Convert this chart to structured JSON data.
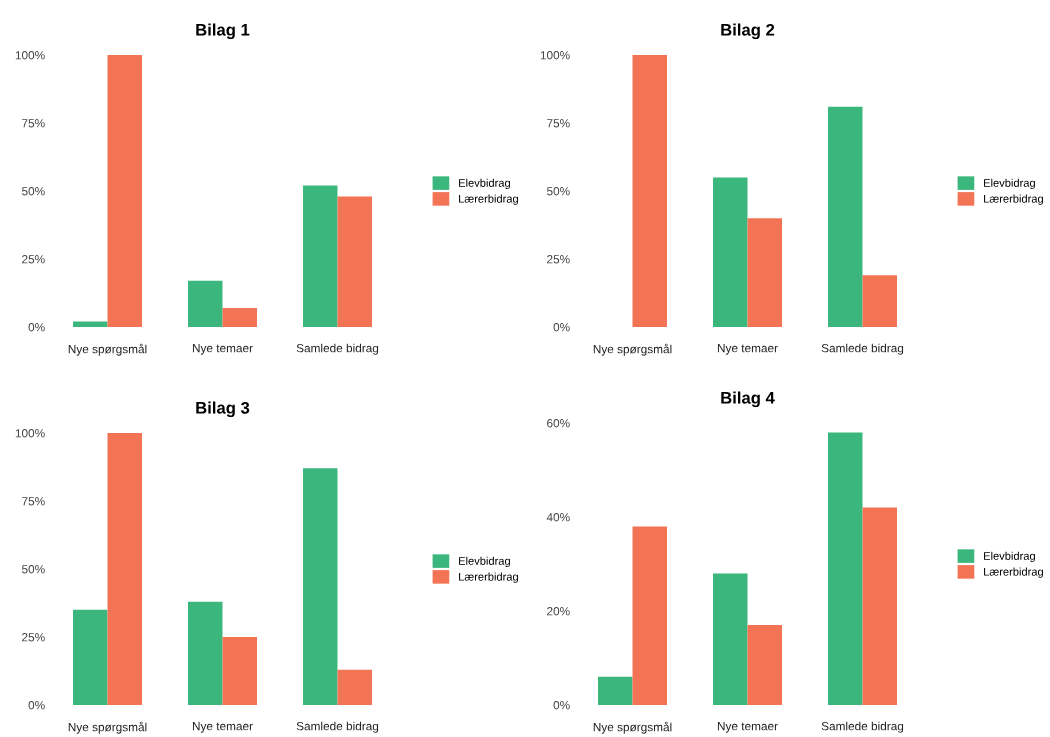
{
  "chart_data": [
    {
      "type": "bar",
      "title": "Bilag 1",
      "categories": [
        "Nye spørgsmål",
        "Nye temaer",
        "Samlede bidrag"
      ],
      "series": [
        {
          "name": "Elevbidrag",
          "color": "#3bb77e",
          "values": [
            2,
            17,
            52
          ]
        },
        {
          "name": "Lærerbidrag",
          "color": "#f27455",
          "values": [
            100,
            7,
            48
          ]
        }
      ],
      "ylim": [
        0,
        100
      ],
      "yticks": [
        {
          "value": 0,
          "label": "0%"
        },
        {
          "value": 25,
          "label": "25%"
        },
        {
          "value": 50,
          "label": "50%"
        },
        {
          "value": 75,
          "label": "75%"
        },
        {
          "value": 100,
          "label": "100%"
        }
      ],
      "grid": false,
      "legend": "right"
    },
    {
      "type": "bar",
      "title": "Bilag 2",
      "categories": [
        "Nye spørgsmål",
        "Nye temaer",
        "Samlede bidrag"
      ],
      "series": [
        {
          "name": "Elevbidrag",
          "color": "#3bb77e",
          "values": [
            0,
            55,
            81
          ]
        },
        {
          "name": "Lærerbidrag",
          "color": "#f27455",
          "values": [
            100,
            40,
            19
          ]
        }
      ],
      "ylim": [
        0,
        100
      ],
      "yticks": [
        {
          "value": 0,
          "label": "0%"
        },
        {
          "value": 25,
          "label": "25%"
        },
        {
          "value": 50,
          "label": "50%"
        },
        {
          "value": 75,
          "label": "75%"
        },
        {
          "value": 100,
          "label": "100%"
        }
      ],
      "grid": false,
      "legend": "right"
    },
    {
      "type": "bar",
      "title": "Bilag 3",
      "categories": [
        "Nye spørgsmål",
        "Nye temaer",
        "Samlede bidrag"
      ],
      "series": [
        {
          "name": "Elevbidrag",
          "color": "#3bb77e",
          "values": [
            35,
            38,
            87
          ]
        },
        {
          "name": "Lærerbidrag",
          "color": "#f27455",
          "values": [
            100,
            25,
            13
          ]
        }
      ],
      "ylim": [
        0,
        100
      ],
      "yticks": [
        {
          "value": 0,
          "label": "0%"
        },
        {
          "value": 25,
          "label": "25%"
        },
        {
          "value": 50,
          "label": "50%"
        },
        {
          "value": 75,
          "label": "75%"
        },
        {
          "value": 100,
          "label": "100%"
        }
      ],
      "grid": false,
      "legend": "right"
    },
    {
      "type": "bar",
      "title": "Bilag 4",
      "categories": [
        "Nye spørgsmål",
        "Nye temaer",
        "Samlede bidrag"
      ],
      "series": [
        {
          "name": "Elevbidrag",
          "color": "#3bb77e",
          "values": [
            6,
            28,
            58
          ]
        },
        {
          "name": "Lærerbidrag",
          "color": "#f27455",
          "values": [
            38,
            17,
            42
          ]
        }
      ],
      "ylim": [
        0,
        60
      ],
      "yticks": [
        {
          "value": 0,
          "label": "0%"
        },
        {
          "value": 20,
          "label": "20%"
        },
        {
          "value": 40,
          "label": "40%"
        },
        {
          "value": 60,
          "label": "60%"
        }
      ],
      "grid": false,
      "legend": "right"
    }
  ]
}
